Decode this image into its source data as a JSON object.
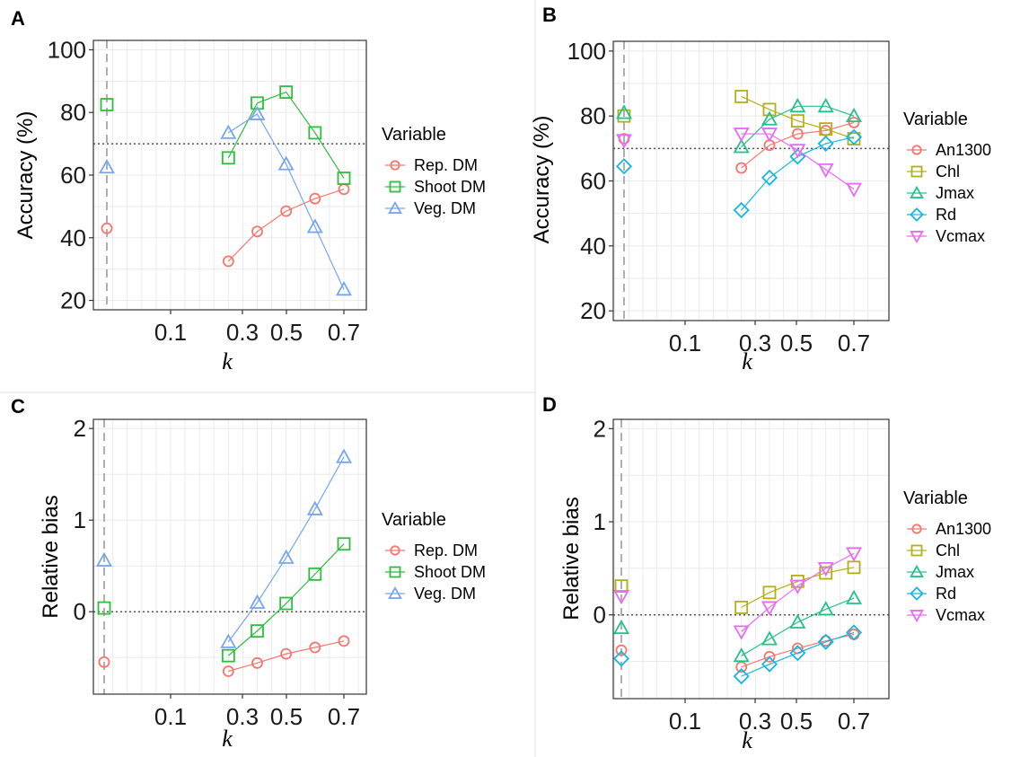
{
  "colors": {
    "rep_dm": "#f8766d",
    "shoot_dm": "#2ebd3e",
    "veg_dm": "#77a6f0",
    "an1300": "#f8766d",
    "chl": "#b2b016",
    "jmax": "#23c28a",
    "rd": "#16b6e0",
    "vcmax": "#e76bf3",
    "grid": "#ebebeb",
    "axis": "#333333",
    "dashed_line": "#b0b0b0",
    "dotted_line": "#555555"
  },
  "chart_data": [
    {
      "panel": "A",
      "type": "line",
      "xlabel": "k",
      "ylabel": "Accuracy (%)",
      "x_ticks": [
        "0.1",
        "0.3",
        "0.5",
        "0.7"
      ],
      "y_ticks": [
        "20",
        "40",
        "60",
        "80",
        "100"
      ],
      "ylim": [
        17,
        103
      ],
      "reference_y": 70,
      "legend_title": "Variable",
      "legend_position": "right",
      "series": [
        {
          "name": "Rep. DM",
          "color_key": "rep_dm",
          "marker": "circle",
          "baseline": 43,
          "x": [
            0.3,
            0.4,
            0.5,
            0.6,
            0.7
          ],
          "y": [
            32.5,
            42,
            48.5,
            52.5,
            55.5
          ]
        },
        {
          "name": "Shoot DM",
          "color_key": "shoot_dm",
          "marker": "square",
          "baseline": 82.5,
          "x": [
            0.3,
            0.4,
            0.5,
            0.6,
            0.7
          ],
          "y": [
            65.5,
            83,
            86.5,
            73.5,
            59
          ]
        },
        {
          "name": "Veg. DM",
          "color_key": "veg_dm",
          "marker": "triangle",
          "baseline": 62.5,
          "x": [
            0.3,
            0.4,
            0.5,
            0.6,
            0.7
          ],
          "y": [
            73.5,
            79.5,
            63.5,
            43.5,
            23.5
          ]
        }
      ]
    },
    {
      "panel": "B",
      "type": "line",
      "xlabel": "k",
      "ylabel": "Accuracy (%)",
      "x_ticks": [
        "0.1",
        "0.3",
        "0.5",
        "0.7"
      ],
      "y_ticks": [
        "20",
        "40",
        "60",
        "80",
        "100"
      ],
      "ylim": [
        17,
        103
      ],
      "reference_y": 70,
      "legend_title": "Variable",
      "legend_position": "right",
      "series": [
        {
          "name": "An1300",
          "color_key": "an1300",
          "marker": "circle",
          "baseline": 73,
          "x": [
            0.3,
            0.4,
            0.5,
            0.6,
            0.7
          ],
          "y": [
            64,
            71,
            74.5,
            75.5,
            78
          ]
        },
        {
          "name": "Chl",
          "color_key": "chl",
          "marker": "square",
          "baseline": 80,
          "x": [
            0.3,
            0.4,
            0.5,
            0.6,
            0.7
          ],
          "y": [
            86,
            82,
            78.5,
            76,
            73
          ]
        },
        {
          "name": "Jmax",
          "color_key": "jmax",
          "marker": "triangle",
          "baseline": 81,
          "x": [
            0.3,
            0.4,
            0.5,
            0.6,
            0.7
          ],
          "y": [
            70.5,
            79,
            83,
            83,
            80
          ]
        },
        {
          "name": "Rd",
          "color_key": "rd",
          "marker": "diamond",
          "baseline": 64.5,
          "x": [
            0.3,
            0.4,
            0.5,
            0.6,
            0.7
          ],
          "y": [
            51,
            61,
            67.5,
            71.5,
            73.5
          ]
        },
        {
          "name": "Vcmax",
          "color_key": "vcmax",
          "marker": "triangle-down",
          "baseline": 72.5,
          "x": [
            0.3,
            0.4,
            0.5,
            0.6,
            0.7
          ],
          "y": [
            74.5,
            74.5,
            69.5,
            63.5,
            57.5
          ]
        }
      ]
    },
    {
      "panel": "C",
      "type": "line",
      "xlabel": "k",
      "ylabel": "Relative bias",
      "x_ticks": [
        "0.1",
        "0.3",
        "0.5",
        "0.7"
      ],
      "y_ticks": [
        "0",
        "1",
        "2"
      ],
      "ylim": [
        -0.9,
        2.1
      ],
      "reference_y": 0,
      "legend_title": "Variable",
      "legend_position": "right",
      "series": [
        {
          "name": "Rep. DM",
          "color_key": "rep_dm",
          "marker": "circle",
          "baseline": -0.55,
          "x": [
            0.3,
            0.4,
            0.5,
            0.6,
            0.7
          ],
          "y": [
            -0.65,
            -0.56,
            -0.46,
            -0.39,
            -0.32
          ]
        },
        {
          "name": "Shoot DM",
          "color_key": "shoot_dm",
          "marker": "square",
          "baseline": 0.04,
          "x": [
            0.3,
            0.4,
            0.5,
            0.6,
            0.7
          ],
          "y": [
            -0.48,
            -0.21,
            0.09,
            0.41,
            0.74
          ]
        },
        {
          "name": "Veg. DM",
          "color_key": "veg_dm",
          "marker": "triangle",
          "baseline": 0.56,
          "x": [
            0.3,
            0.4,
            0.5,
            0.6,
            0.7
          ],
          "y": [
            -0.33,
            0.1,
            0.59,
            1.12,
            1.69
          ]
        }
      ]
    },
    {
      "panel": "D",
      "type": "line",
      "xlabel": "k",
      "ylabel": "Relative bias",
      "x_ticks": [
        "0.1",
        "0.3",
        "0.5",
        "0.7"
      ],
      "y_ticks": [
        "0",
        "1",
        "2"
      ],
      "ylim": [
        -0.9,
        2.1
      ],
      "reference_y": 0,
      "legend_title": "Variable",
      "legend_position": "right",
      "series": [
        {
          "name": "An1300",
          "color_key": "an1300",
          "marker": "circle",
          "baseline": -0.38,
          "x": [
            0.3,
            0.4,
            0.5,
            0.6,
            0.7
          ],
          "y": [
            -0.56,
            -0.45,
            -0.36,
            -0.28,
            -0.21
          ]
        },
        {
          "name": "Chl",
          "color_key": "chl",
          "marker": "square",
          "baseline": 0.31,
          "x": [
            0.3,
            0.4,
            0.5,
            0.6,
            0.7
          ],
          "y": [
            0.08,
            0.24,
            0.36,
            0.45,
            0.51
          ]
        },
        {
          "name": "Jmax",
          "color_key": "jmax",
          "marker": "triangle",
          "baseline": -0.14,
          "x": [
            0.3,
            0.4,
            0.5,
            0.6,
            0.7
          ],
          "y": [
            -0.44,
            -0.26,
            -0.08,
            0.06,
            0.18
          ]
        },
        {
          "name": "Rd",
          "color_key": "rd",
          "marker": "diamond",
          "baseline": -0.47,
          "x": [
            0.3,
            0.4,
            0.5,
            0.6,
            0.7
          ],
          "y": [
            -0.66,
            -0.53,
            -0.41,
            -0.29,
            -0.19
          ]
        },
        {
          "name": "Vcmax",
          "color_key": "vcmax",
          "marker": "triangle-down",
          "baseline": 0.2,
          "x": [
            0.3,
            0.4,
            0.5,
            0.6,
            0.7
          ],
          "y": [
            -0.18,
            0.08,
            0.31,
            0.5,
            0.66
          ]
        }
      ]
    }
  ]
}
